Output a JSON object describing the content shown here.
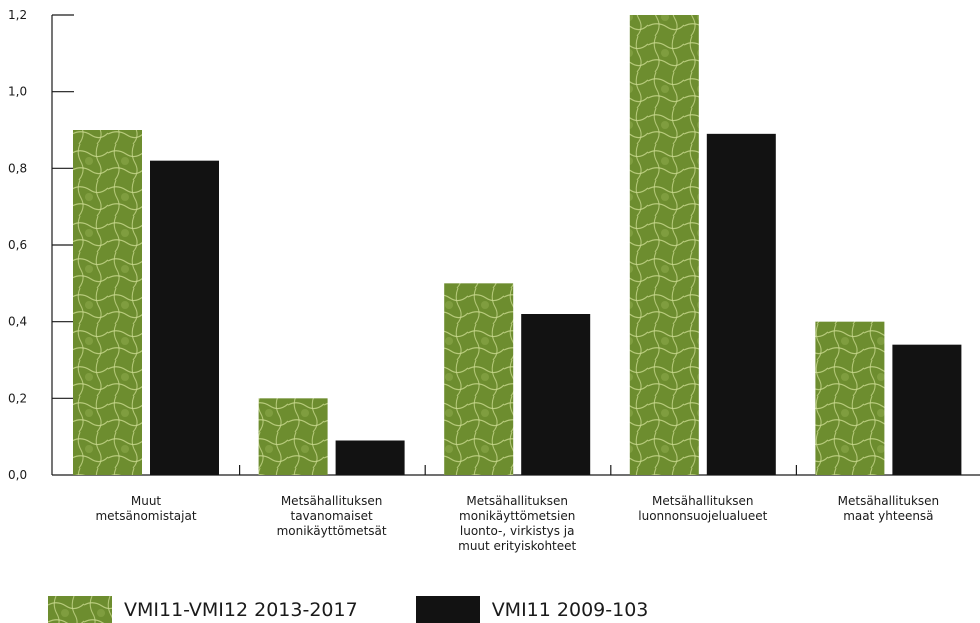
{
  "chart_data": {
    "type": "bar",
    "categories": [
      "Muut\nmetsänomistajat",
      "Metsähallituksen\ntavanomaiset\nmonikäyttömetsät",
      "Metsähallituksen\nmonikäyttömetsien\nluonto-, virkistys ja\nmuut erityiskohteet",
      "Metsähallituksen\nluonnonsuojelualueet",
      "Metsähallituksen\nmaat yhteensä"
    ],
    "series": [
      {
        "name": "VMI11-VMI12 2013-2017",
        "values": [
          0.9,
          0.2,
          0.5,
          1.2,
          0.4
        ],
        "color": "#6f8f30"
      },
      {
        "name": "VMI11 2009-103",
        "values": [
          0.82,
          0.09,
          0.42,
          0.89,
          0.34
        ],
        "color": "#121212"
      }
    ],
    "yticks": [
      "0,0",
      "0,2",
      "0,4",
      "0,6",
      "0,8",
      "1,0",
      "1,2"
    ],
    "ylim": [
      0,
      1.2
    ],
    "title": "",
    "xlabel": "",
    "ylabel": "",
    "grid": false,
    "legend_position": "bottom-left"
  }
}
